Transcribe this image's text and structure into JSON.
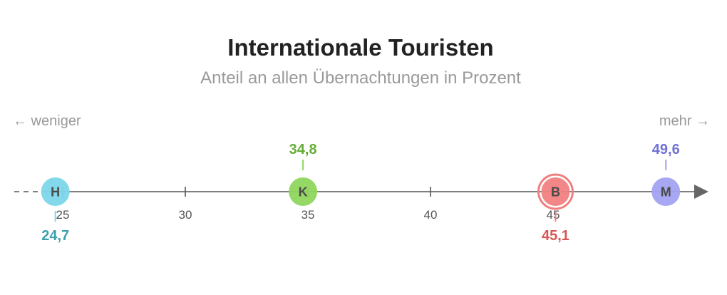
{
  "chart_data": {
    "type": "scatter",
    "title": "Internationale Touristen",
    "subtitle": "Anteil an allen Übernachtungen in Prozent",
    "direction_left": "← weniger",
    "direction_right": "mehr →",
    "xlim": [
      22.5,
      51.5
    ],
    "ticks": [
      25,
      30,
      35,
      40,
      45
    ],
    "tick_labels": [
      "25",
      "30",
      "35",
      "40",
      "45"
    ],
    "points": [
      {
        "letter": "H",
        "value": 24.7,
        "label": "24,7",
        "color": "#7dd6ea",
        "label_color": "#3d9fb0",
        "label_pos": "below",
        "highlight": false
      },
      {
        "letter": "K",
        "value": 34.8,
        "label": "34,8",
        "color": "#8fd65e",
        "label_color": "#64ad35",
        "label_pos": "above",
        "highlight": false
      },
      {
        "letter": "B",
        "value": 45.1,
        "label": "45,1",
        "color": "#f27f7f",
        "label_color": "#d95454",
        "label_pos": "below",
        "highlight": true
      },
      {
        "letter": "M",
        "value": 49.6,
        "label": "49,6",
        "color": "#a3a2f2",
        "label_color": "#7272d6",
        "label_pos": "above",
        "highlight": false
      }
    ]
  }
}
